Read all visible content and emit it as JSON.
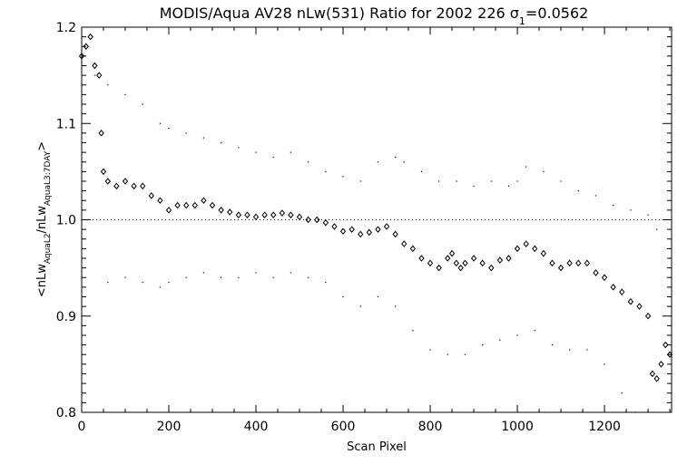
{
  "chart_data": {
    "type": "scatter",
    "title": "MODIS/Aqua AV28 nLw(531) Ratio for 2002 226 σ₁=0.0562",
    "title_parts": {
      "main": "MODIS/Aqua AV28 nLw(531) Ratio for 2002 226 ",
      "sigma": "σ",
      "sigma_sub": "1",
      "sigma_value": "=0.0562"
    },
    "xlabel": "Scan Pixel",
    "ylabel_parts": {
      "open": "<nLw",
      "sub1": "AquaL2",
      "mid": "/nLw",
      "sub2": "AquaL3:7DAY",
      "close": ">"
    },
    "xlim": [
      0,
      1354
    ],
    "ylim": [
      0.8,
      1.2
    ],
    "x_ticks": [
      0,
      200,
      400,
      600,
      800,
      1000,
      1200
    ],
    "x_tick_labels": [
      "0",
      "200",
      "400",
      "600",
      "800",
      "1000",
      "1200"
    ],
    "y_ticks": [
      0.8,
      0.9,
      1.0,
      1.1,
      1.2
    ],
    "y_tick_labels": [
      "0.8",
      "0.9",
      "1.0",
      "1.1",
      "1.2"
    ],
    "reference_line": 1.0,
    "grid": false,
    "legend": "none",
    "marker_color": "#000000",
    "series": [
      {
        "role": "mean",
        "marker": "diamond",
        "points": [
          [
            0,
            1.17
          ],
          [
            10,
            1.18
          ],
          [
            20,
            1.19
          ],
          [
            30,
            1.16
          ],
          [
            40,
            1.15
          ],
          [
            45,
            1.09
          ],
          [
            50,
            1.05
          ],
          [
            60,
            1.04
          ],
          [
            80,
            1.035
          ],
          [
            100,
            1.04
          ],
          [
            120,
            1.035
          ],
          [
            140,
            1.035
          ],
          [
            160,
            1.025
          ],
          [
            180,
            1.02
          ],
          [
            200,
            1.01
          ],
          [
            220,
            1.015
          ],
          [
            240,
            1.015
          ],
          [
            260,
            1.015
          ],
          [
            280,
            1.02
          ],
          [
            300,
            1.015
          ],
          [
            320,
            1.01
          ],
          [
            340,
            1.008
          ],
          [
            360,
            1.005
          ],
          [
            380,
            1.005
          ],
          [
            400,
            1.003
          ],
          [
            420,
            1.005
          ],
          [
            440,
            1.005
          ],
          [
            460,
            1.007
          ],
          [
            480,
            1.005
          ],
          [
            500,
            1.003
          ],
          [
            520,
            1.0
          ],
          [
            540,
            1.0
          ],
          [
            560,
            0.997
          ],
          [
            580,
            0.993
          ],
          [
            600,
            0.988
          ],
          [
            620,
            0.99
          ],
          [
            640,
            0.985
          ],
          [
            660,
            0.987
          ],
          [
            680,
            0.99
          ],
          [
            700,
            0.993
          ],
          [
            720,
            0.985
          ],
          [
            740,
            0.975
          ],
          [
            760,
            0.97
          ],
          [
            780,
            0.96
          ],
          [
            800,
            0.955
          ],
          [
            820,
            0.95
          ],
          [
            840,
            0.96
          ],
          [
            850,
            0.965
          ],
          [
            860,
            0.955
          ],
          [
            870,
            0.95
          ],
          [
            880,
            0.955
          ],
          [
            900,
            0.96
          ],
          [
            920,
            0.955
          ],
          [
            940,
            0.95
          ],
          [
            960,
            0.958
          ],
          [
            980,
            0.96
          ],
          [
            1000,
            0.97
          ],
          [
            1020,
            0.975
          ],
          [
            1040,
            0.97
          ],
          [
            1060,
            0.965
          ],
          [
            1080,
            0.955
          ],
          [
            1100,
            0.95
          ],
          [
            1120,
            0.955
          ],
          [
            1140,
            0.955
          ],
          [
            1160,
            0.955
          ],
          [
            1180,
            0.945
          ],
          [
            1200,
            0.94
          ],
          [
            1220,
            0.93
          ],
          [
            1240,
            0.925
          ],
          [
            1260,
            0.915
          ],
          [
            1280,
            0.91
          ],
          [
            1300,
            0.9
          ],
          [
            1310,
            0.84
          ],
          [
            1320,
            0.835
          ],
          [
            1330,
            0.85
          ],
          [
            1340,
            0.87
          ],
          [
            1350,
            0.86
          ]
        ]
      },
      {
        "role": "upper",
        "marker": "dot",
        "points": [
          [
            10,
            1.16
          ],
          [
            30,
            1.15
          ],
          [
            60,
            1.14
          ],
          [
            100,
            1.13
          ],
          [
            140,
            1.12
          ],
          [
            180,
            1.1
          ],
          [
            200,
            1.095
          ],
          [
            240,
            1.09
          ],
          [
            280,
            1.085
          ],
          [
            320,
            1.08
          ],
          [
            360,
            1.075
          ],
          [
            400,
            1.07
          ],
          [
            440,
            1.065
          ],
          [
            480,
            1.07
          ],
          [
            520,
            1.06
          ],
          [
            560,
            1.05
          ],
          [
            600,
            1.045
          ],
          [
            640,
            1.04
          ],
          [
            680,
            1.06
          ],
          [
            720,
            1.065
          ],
          [
            740,
            1.06
          ],
          [
            780,
            1.05
          ],
          [
            820,
            1.04
          ],
          [
            860,
            1.04
          ],
          [
            900,
            1.035
          ],
          [
            940,
            1.04
          ],
          [
            980,
            1.035
          ],
          [
            1000,
            1.04
          ],
          [
            1020,
            1.055
          ],
          [
            1060,
            1.05
          ],
          [
            1100,
            1.04
          ],
          [
            1140,
            1.03
          ],
          [
            1180,
            1.025
          ],
          [
            1220,
            1.015
          ],
          [
            1260,
            1.01
          ],
          [
            1300,
            1.005
          ],
          [
            1320,
            0.99
          ]
        ]
      },
      {
        "role": "lower",
        "marker": "dot",
        "points": [
          [
            60,
            0.935
          ],
          [
            100,
            0.94
          ],
          [
            140,
            0.935
          ],
          [
            180,
            0.93
          ],
          [
            200,
            0.935
          ],
          [
            240,
            0.94
          ],
          [
            280,
            0.945
          ],
          [
            320,
            0.94
          ],
          [
            360,
            0.94
          ],
          [
            400,
            0.945
          ],
          [
            440,
            0.94
          ],
          [
            480,
            0.945
          ],
          [
            520,
            0.94
          ],
          [
            560,
            0.935
          ],
          [
            600,
            0.92
          ],
          [
            640,
            0.91
          ],
          [
            680,
            0.92
          ],
          [
            720,
            0.91
          ],
          [
            760,
            0.885
          ],
          [
            800,
            0.865
          ],
          [
            840,
            0.86
          ],
          [
            880,
            0.86
          ],
          [
            920,
            0.87
          ],
          [
            960,
            0.875
          ],
          [
            1000,
            0.88
          ],
          [
            1040,
            0.885
          ],
          [
            1080,
            0.87
          ],
          [
            1120,
            0.865
          ],
          [
            1160,
            0.865
          ],
          [
            1200,
            0.85
          ],
          [
            1240,
            0.82
          ],
          [
            1270,
            0.8
          ]
        ]
      }
    ]
  }
}
